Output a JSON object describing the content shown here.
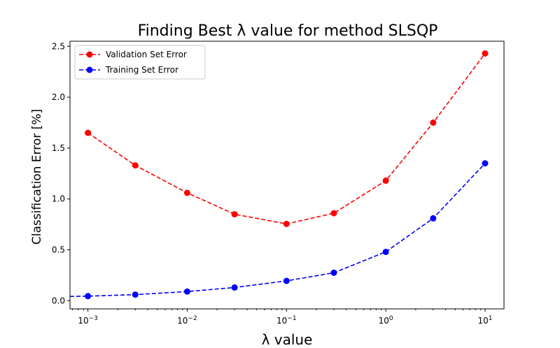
{
  "chart_data": {
    "type": "line",
    "title": "Finding Best λ value for method SLSQP",
    "xlabel": "λ value",
    "ylabel": "Classification Error [%]",
    "xscale": "log",
    "xlim": [
      0.00066,
      15.5
    ],
    "ylim": [
      -0.08,
      2.55
    ],
    "x": [
      0.001,
      0.003,
      0.01,
      0.03,
      0.1,
      0.3,
      1,
      3,
      10
    ],
    "series": [
      {
        "name": "Validation Set Error",
        "color": "#ff0000",
        "values": [
          1.65,
          1.33,
          1.06,
          0.85,
          0.755,
          0.86,
          1.18,
          1.75,
          2.43
        ]
      },
      {
        "name": "Training Set Error",
        "color": "#0000ff",
        "values": [
          0.045,
          0.06,
          0.09,
          0.13,
          0.195,
          0.275,
          0.48,
          0.81,
          1.35
        ],
        "line_extends_to_left_edge": 0.042
      }
    ],
    "y_ticks": [
      "0.0",
      "0.5",
      "1.0",
      "1.5",
      "2.0",
      "2.5"
    ],
    "y_tick_values": [
      0,
      0.5,
      1.0,
      1.5,
      2.0,
      2.5
    ],
    "x_tick_exponents": [
      -3,
      -2,
      -1,
      0,
      1
    ],
    "x_tick_labels": [
      "10",
      "10",
      "10",
      "10",
      "10"
    ],
    "x_tick_sup": [
      "−3",
      "−2",
      "−1",
      "0",
      "1"
    ],
    "legend_placement": "top-left",
    "grid": false,
    "line_style": "dashed",
    "marker": "circle"
  }
}
